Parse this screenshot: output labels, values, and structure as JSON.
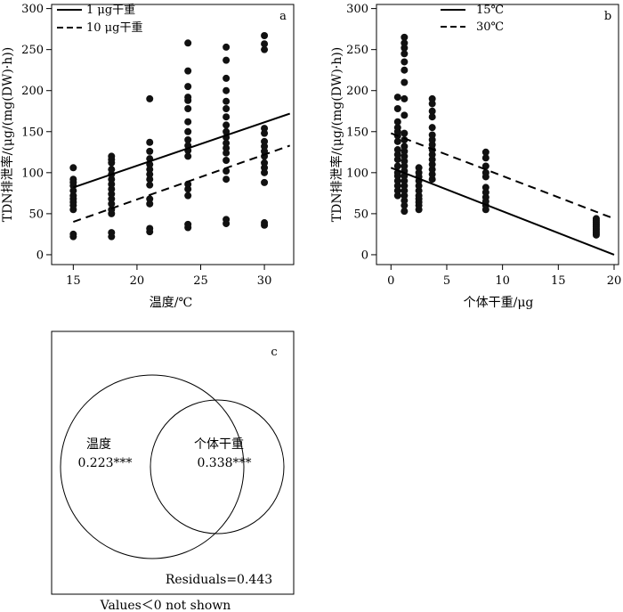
{
  "chart_data": [
    {
      "id": "a",
      "type": "scatter",
      "panel_label": "a",
      "xlabel": "温度/℃",
      "ylabel": "TDN排泄率/(μg/(mg(DW)·h))",
      "xlim": [
        13.3,
        32.3
      ],
      "ylim": [
        -12,
        305
      ],
      "xticks": [
        15,
        20,
        25,
        30
      ],
      "yticks": [
        0,
        50,
        100,
        150,
        200,
        250,
        300
      ],
      "grid": false,
      "legend_position": "top-left",
      "points": [
        [
          15,
          22
        ],
        [
          15,
          25
        ],
        [
          15,
          55
        ],
        [
          15,
          60
        ],
        [
          15,
          64
        ],
        [
          15,
          68
        ],
        [
          15,
          72
        ],
        [
          15,
          78
        ],
        [
          15,
          84
        ],
        [
          15,
          88
        ],
        [
          15,
          92
        ],
        [
          15,
          106
        ],
        [
          18,
          22
        ],
        [
          18,
          27
        ],
        [
          18,
          50
        ],
        [
          18,
          55
        ],
        [
          18,
          62
        ],
        [
          18,
          68
        ],
        [
          18,
          74
        ],
        [
          18,
          80
        ],
        [
          18,
          86
        ],
        [
          18,
          92
        ],
        [
          18,
          98
        ],
        [
          18,
          104
        ],
        [
          18,
          112
        ],
        [
          18,
          116
        ],
        [
          18,
          120
        ],
        [
          21,
          28
        ],
        [
          21,
          32
        ],
        [
          21,
          62
        ],
        [
          21,
          68
        ],
        [
          21,
          85
        ],
        [
          21,
          92
        ],
        [
          21,
          98
        ],
        [
          21,
          104
        ],
        [
          21,
          110
        ],
        [
          21,
          117
        ],
        [
          21,
          126
        ],
        [
          21,
          137
        ],
        [
          21,
          190
        ],
        [
          24,
          33
        ],
        [
          24,
          37
        ],
        [
          24,
          72
        ],
        [
          24,
          80
        ],
        [
          24,
          86
        ],
        [
          24,
          120
        ],
        [
          24,
          127
        ],
        [
          24,
          133
        ],
        [
          24,
          140
        ],
        [
          24,
          150
        ],
        [
          24,
          162
        ],
        [
          24,
          178
        ],
        [
          24,
          188
        ],
        [
          24,
          192
        ],
        [
          24,
          205
        ],
        [
          24,
          224
        ],
        [
          24,
          258
        ],
        [
          27,
          38
        ],
        [
          27,
          43
        ],
        [
          27,
          92
        ],
        [
          27,
          102
        ],
        [
          27,
          115
        ],
        [
          27,
          124
        ],
        [
          27,
          130
        ],
        [
          27,
          136
        ],
        [
          27,
          143
        ],
        [
          27,
          150
        ],
        [
          27,
          158
        ],
        [
          27,
          168
        ],
        [
          27,
          178
        ],
        [
          27,
          187
        ],
        [
          27,
          200
        ],
        [
          27,
          215
        ],
        [
          27,
          237
        ],
        [
          27,
          253
        ],
        [
          30,
          36
        ],
        [
          30,
          39
        ],
        [
          30,
          88
        ],
        [
          30,
          100
        ],
        [
          30,
          106
        ],
        [
          30,
          112
        ],
        [
          30,
          120
        ],
        [
          30,
          126
        ],
        [
          30,
          132
        ],
        [
          30,
          138
        ],
        [
          30,
          148
        ],
        [
          30,
          154
        ],
        [
          30,
          250
        ],
        [
          30,
          257
        ],
        [
          30,
          267
        ]
      ],
      "lines": [
        {
          "name": "1 μg干重",
          "style": "solid",
          "x": [
            15,
            32
          ],
          "y": [
            82,
            172
          ]
        },
        {
          "name": "10 μg干重",
          "style": "dashed",
          "x": [
            15,
            32
          ],
          "y": [
            40,
            133
          ]
        }
      ]
    },
    {
      "id": "b",
      "type": "scatter",
      "panel_label": "b",
      "xlabel": "个体干重/μg",
      "ylabel": "TDN排泄率/(μg/(mg(DW)·h))",
      "xlim": [
        -1.3,
        20.4
      ],
      "ylim": [
        -12,
        305
      ],
      "xticks": [
        0,
        5,
        10,
        15,
        20
      ],
      "yticks": [
        0,
        50,
        100,
        150,
        200,
        250,
        300
      ],
      "grid": false,
      "legend_position": "top-center",
      "points": [
        [
          0.6,
          72
        ],
        [
          0.6,
          78
        ],
        [
          0.6,
          84
        ],
        [
          0.6,
          90
        ],
        [
          0.6,
          96
        ],
        [
          0.6,
          100
        ],
        [
          0.6,
          108
        ],
        [
          0.6,
          116
        ],
        [
          0.6,
          122
        ],
        [
          0.6,
          128
        ],
        [
          0.6,
          138
        ],
        [
          0.6,
          145
        ],
        [
          0.6,
          150
        ],
        [
          0.6,
          155
        ],
        [
          0.6,
          162
        ],
        [
          0.6,
          178
        ],
        [
          0.6,
          192
        ],
        [
          1.2,
          53
        ],
        [
          1.2,
          60
        ],
        [
          1.2,
          66
        ],
        [
          1.2,
          72
        ],
        [
          1.2,
          78
        ],
        [
          1.2,
          84
        ],
        [
          1.2,
          90
        ],
        [
          1.2,
          96
        ],
        [
          1.2,
          102
        ],
        [
          1.2,
          108
        ],
        [
          1.2,
          114
        ],
        [
          1.2,
          120
        ],
        [
          1.2,
          126
        ],
        [
          1.2,
          132
        ],
        [
          1.2,
          140
        ],
        [
          1.2,
          148
        ],
        [
          1.2,
          170
        ],
        [
          1.2,
          190
        ],
        [
          1.2,
          210
        ],
        [
          1.2,
          225
        ],
        [
          1.2,
          235
        ],
        [
          1.2,
          245
        ],
        [
          1.2,
          252
        ],
        [
          1.2,
          258
        ],
        [
          1.2,
          265
        ],
        [
          2.5,
          55
        ],
        [
          2.5,
          60
        ],
        [
          2.5,
          64
        ],
        [
          2.5,
          68
        ],
        [
          2.5,
          72
        ],
        [
          2.5,
          78
        ],
        [
          2.5,
          84
        ],
        [
          2.5,
          90
        ],
        [
          2.5,
          95
        ],
        [
          2.5,
          100
        ],
        [
          2.5,
          106
        ],
        [
          3.7,
          92
        ],
        [
          3.7,
          98
        ],
        [
          3.7,
          104
        ],
        [
          3.7,
          110
        ],
        [
          3.7,
          116
        ],
        [
          3.7,
          122
        ],
        [
          3.7,
          128
        ],
        [
          3.7,
          134
        ],
        [
          3.7,
          140
        ],
        [
          3.7,
          146
        ],
        [
          3.7,
          155
        ],
        [
          3.7,
          168
        ],
        [
          3.7,
          175
        ],
        [
          3.7,
          184
        ],
        [
          3.7,
          190
        ],
        [
          8.5,
          55
        ],
        [
          8.5,
          60
        ],
        [
          8.5,
          65
        ],
        [
          8.5,
          70
        ],
        [
          8.5,
          76
        ],
        [
          8.5,
          82
        ],
        [
          8.5,
          95
        ],
        [
          8.5,
          100
        ],
        [
          8.5,
          108
        ],
        [
          8.5,
          118
        ],
        [
          8.5,
          125
        ],
        [
          18.4,
          24
        ],
        [
          18.4,
          26
        ],
        [
          18.4,
          28
        ],
        [
          18.4,
          30
        ],
        [
          18.4,
          32
        ],
        [
          18.4,
          34
        ],
        [
          18.4,
          36
        ],
        [
          18.4,
          38
        ],
        [
          18.4,
          40
        ],
        [
          18.4,
          42
        ],
        [
          18.4,
          44
        ]
      ],
      "lines": [
        {
          "name": "15℃",
          "style": "solid",
          "x": [
            0,
            20
          ],
          "y": [
            106,
            0
          ]
        },
        {
          "name": "30℃",
          "style": "dashed",
          "x": [
            0,
            20
          ],
          "y": [
            148,
            44
          ]
        }
      ]
    },
    {
      "id": "c",
      "type": "venn",
      "panel_label": "c",
      "sets": [
        {
          "name": "温度",
          "value": "0.223***"
        },
        {
          "name": "个体干重",
          "value": "0.338***"
        }
      ],
      "residuals": "Residuals=0.443",
      "footnote": "Values＜0 not shown"
    }
  ]
}
